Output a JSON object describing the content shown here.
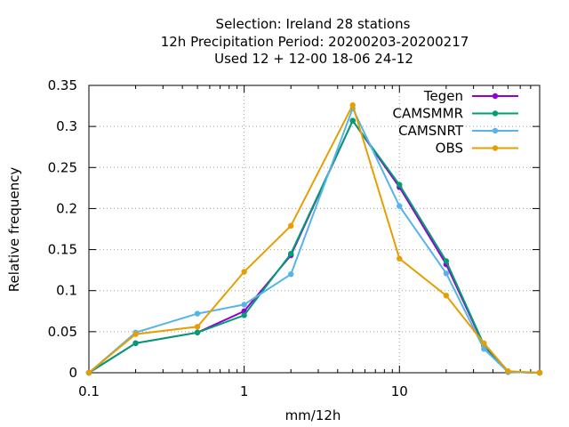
{
  "chart_data": {
    "type": "line",
    "title_lines": [
      "Selection: Ireland      28 stations",
      "12h Precipitation  Period: 20200203-20200217",
      "Used  12 + 12-00 18-06 24-12"
    ],
    "xlabel": "mm/12h",
    "ylabel": "Relative frequency",
    "x_scale": "log",
    "xlim": [
      0.1,
      80
    ],
    "ylim": [
      0,
      0.35
    ],
    "x_ticks": [
      {
        "value": 0.1,
        "label": "0.1"
      },
      {
        "value": 1,
        "label": "1"
      },
      {
        "value": 10,
        "label": "10"
      }
    ],
    "y_ticks": [
      {
        "value": 0,
        "label": "0"
      },
      {
        "value": 0.05,
        "label": "0.05"
      },
      {
        "value": 0.1,
        "label": "0.1"
      },
      {
        "value": 0.15,
        "label": "0.15"
      },
      {
        "value": 0.2,
        "label": "0.2"
      },
      {
        "value": 0.25,
        "label": "0.25"
      },
      {
        "value": 0.3,
        "label": "0.3"
      },
      {
        "value": 0.35,
        "label": "0.35"
      }
    ],
    "grid": "dotted at major ticks",
    "legend_position": "top-right",
    "x": [
      0.1,
      0.2,
      0.5,
      1,
      2,
      5,
      10,
      20,
      35,
      50,
      80
    ],
    "series": [
      {
        "name": "Tegen",
        "color": "#9400d3",
        "values": [
          0.0,
          0.036,
          0.049,
          0.075,
          0.143,
          0.307,
          0.226,
          0.132,
          0.033,
          0.001,
          0.0
        ]
      },
      {
        "name": "CAMSMMR",
        "color": "#009e73",
        "values": [
          0.0,
          0.036,
          0.049,
          0.07,
          0.145,
          0.307,
          0.229,
          0.136,
          0.034,
          0.001,
          0.0
        ]
      },
      {
        "name": "CAMSNRT",
        "color": "#56b4e9",
        "values": [
          0.0,
          0.049,
          0.072,
          0.083,
          0.12,
          0.322,
          0.203,
          0.121,
          0.029,
          0.001,
          0.0
        ]
      },
      {
        "name": "OBS",
        "color": "#e69f00",
        "values": [
          0.0,
          0.047,
          0.056,
          0.123,
          0.179,
          0.326,
          0.139,
          0.094,
          0.036,
          0.002,
          0.0
        ]
      }
    ]
  }
}
